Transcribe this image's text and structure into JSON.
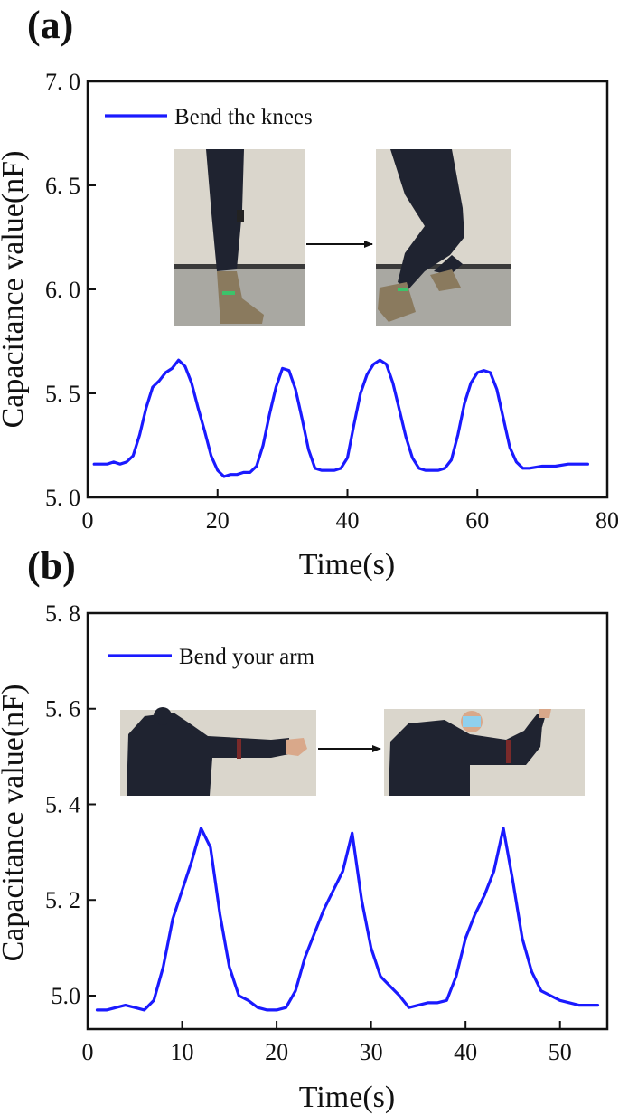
{
  "colors": {
    "series": "#1a1aff",
    "axis": "#111111",
    "wall": "#dad6cc",
    "floor": "#a9a8a2",
    "cloth": "#1f2330"
  },
  "chart_data": [
    {
      "type": "line",
      "panel_label": "(a)",
      "xlabel": "Time(s)",
      "ylabel": "Capacitance value(nF)",
      "xlim": [
        0,
        80
      ],
      "ylim": [
        5.0,
        7.0
      ],
      "xticks": [
        0,
        20,
        40,
        60,
        80
      ],
      "xtick_labels": [
        "0",
        "20",
        "40",
        "60",
        "80"
      ],
      "yticks": [
        5.0,
        5.5,
        6.0,
        6.5,
        7.0
      ],
      "ytick_labels": [
        "5. 0",
        "5. 5",
        "6. 0",
        "6. 5",
        "7. 0"
      ],
      "legend": {
        "position": "top-left"
      },
      "series": [
        {
          "name": "Bend the knees",
          "color": "#1a1aff",
          "x": [
            1,
            3,
            4,
            5,
            6,
            7,
            8,
            9,
            10,
            11,
            12,
            13,
            14,
            15,
            16,
            17,
            18,
            19,
            20,
            21,
            22,
            23,
            24,
            25,
            26,
            27,
            28,
            29,
            30,
            31,
            32,
            33,
            34,
            35,
            36,
            37,
            38,
            39,
            40,
            41,
            42,
            43,
            44,
            45,
            46,
            47,
            48,
            49,
            50,
            51,
            52,
            53,
            54,
            55,
            56,
            57,
            58,
            59,
            60,
            61,
            62,
            63,
            64,
            65,
            66,
            67,
            68,
            70,
            72,
            74,
            76,
            77
          ],
          "y": [
            5.16,
            5.16,
            5.17,
            5.16,
            5.17,
            5.2,
            5.3,
            5.43,
            5.53,
            5.56,
            5.6,
            5.62,
            5.66,
            5.63,
            5.55,
            5.43,
            5.32,
            5.2,
            5.13,
            5.1,
            5.11,
            5.11,
            5.12,
            5.12,
            5.15,
            5.25,
            5.4,
            5.53,
            5.62,
            5.61,
            5.52,
            5.38,
            5.23,
            5.14,
            5.13,
            5.13,
            5.13,
            5.14,
            5.19,
            5.35,
            5.5,
            5.59,
            5.64,
            5.66,
            5.64,
            5.55,
            5.42,
            5.29,
            5.19,
            5.14,
            5.13,
            5.13,
            5.13,
            5.14,
            5.18,
            5.3,
            5.45,
            5.55,
            5.6,
            5.61,
            5.6,
            5.52,
            5.38,
            5.24,
            5.17,
            5.14,
            5.14,
            5.15,
            5.15,
            5.16,
            5.16,
            5.16
          ]
        }
      ]
    },
    {
      "type": "line",
      "panel_label": "(b)",
      "xlabel": "Time(s)",
      "ylabel": "Capacitance value(nF)",
      "xlim": [
        0,
        55
      ],
      "ylim": [
        4.93,
        5.8
      ],
      "xticks": [
        0,
        10,
        20,
        30,
        40,
        50
      ],
      "xtick_labels": [
        "0",
        "10",
        "20",
        "30",
        "40",
        "50"
      ],
      "yticks": [
        5.0,
        5.2,
        5.4,
        5.6,
        5.8
      ],
      "ytick_labels": [
        "5.0",
        "5. 2",
        "5. 4",
        "5. 6",
        "5. 8"
      ],
      "legend": {
        "position": "top-left"
      },
      "series": [
        {
          "name": "Bend your arm",
          "color": "#1a1aff",
          "x": [
            1,
            2,
            3,
            4,
            5,
            6,
            7,
            8,
            9,
            10,
            11,
            12,
            13,
            14,
            15,
            16,
            17,
            18,
            19,
            20,
            21,
            22,
            23,
            24,
            25,
            26,
            27,
            28,
            29,
            30,
            31,
            32,
            33,
            34,
            35,
            36,
            37,
            38,
            39,
            40,
            41,
            42,
            43,
            44,
            45,
            46,
            47,
            48,
            49,
            50,
            51,
            52,
            53,
            54
          ],
          "y": [
            4.97,
            4.97,
            4.975,
            4.98,
            4.975,
            4.97,
            4.99,
            5.06,
            5.16,
            5.22,
            5.28,
            5.35,
            5.31,
            5.17,
            5.06,
            5.0,
            4.99,
            4.975,
            4.97,
            4.97,
            4.975,
            5.01,
            5.08,
            5.13,
            5.18,
            5.22,
            5.26,
            5.34,
            5.2,
            5.1,
            5.04,
            5.02,
            5.0,
            4.975,
            4.98,
            4.985,
            4.985,
            4.99,
            5.04,
            5.12,
            5.17,
            5.21,
            5.26,
            5.35,
            5.24,
            5.12,
            5.05,
            5.01,
            5.0,
            4.99,
            4.985,
            4.98,
            4.98,
            4.98
          ]
        }
      ]
    }
  ]
}
